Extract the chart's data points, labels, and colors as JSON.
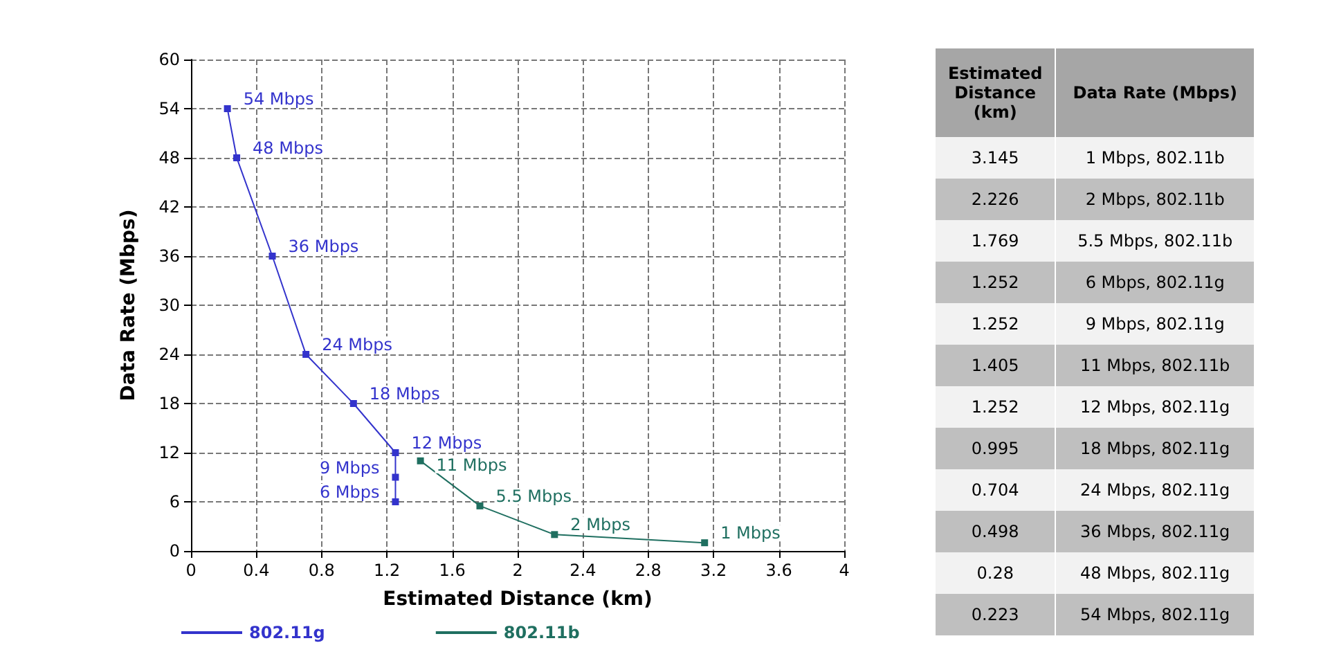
{
  "chart_data": [
    {
      "type": "line",
      "xlabel": "Estimated Distance (km)",
      "ylabel": "Data Rate (Mbps)",
      "xlim": [
        0,
        4
      ],
      "xticks": [
        0,
        0.4,
        0.8,
        1.2,
        1.6,
        2,
        2.4,
        2.8,
        3.2,
        3.6,
        4
      ],
      "ylim": [
        0,
        60
      ],
      "yticks": [
        0,
        6,
        12,
        18,
        24,
        30,
        36,
        42,
        48,
        54,
        60
      ],
      "grid": true,
      "legend": "bottom",
      "marker": "square",
      "line_style": "solid",
      "series": [
        {
          "name": "802.11g",
          "color": "#3333cc",
          "x": [
            0.223,
            0.28,
            0.498,
            0.704,
            0.995,
            1.252,
            1.252,
            1.252
          ],
          "values": [
            54,
            48,
            36,
            24,
            18,
            12,
            9,
            6
          ],
          "value_labels": [
            "54 Mbps",
            "48 Mbps",
            "36 Mbps",
            "24 Mbps",
            "18 Mbps",
            "12 Mbps",
            "9 Mbps",
            "6 Mbps"
          ]
        },
        {
          "name": "802.11b",
          "color": "#1f6f60",
          "x": [
            1.405,
            1.769,
            2.226,
            3.145
          ],
          "values": [
            11,
            5.5,
            2,
            1
          ],
          "value_labels": [
            "11 Mbps",
            "5.5 Mbps",
            "2 Mbps",
            "1 Mbps"
          ]
        }
      ]
    },
    {
      "type": "other",
      "annotations": [
        "Estimated Distance (km)",
        "Data Rate (Mbps)",
        "3.145",
        "1 Mbps, 802.11b",
        "2.226",
        "2 Mbps, 802.11b",
        "1.769",
        "5.5 Mbps, 802.11b",
        "1.252",
        "6 Mbps, 802.11g",
        "1.252",
        "9 Mbps, 802.11g",
        "1.405",
        "11 Mbps, 802.11b",
        "1.252",
        "12 Mbps, 802.11g",
        "0.995",
        "18 Mbps, 802.11g",
        "0.704",
        "24 Mbps, 802.11g",
        "0.498",
        "36 Mbps, 802.11g",
        "0.28",
        "48 Mbps, 802.11g",
        "0.223",
        "54 Mbps, 802.11g"
      ]
    }
  ]
}
